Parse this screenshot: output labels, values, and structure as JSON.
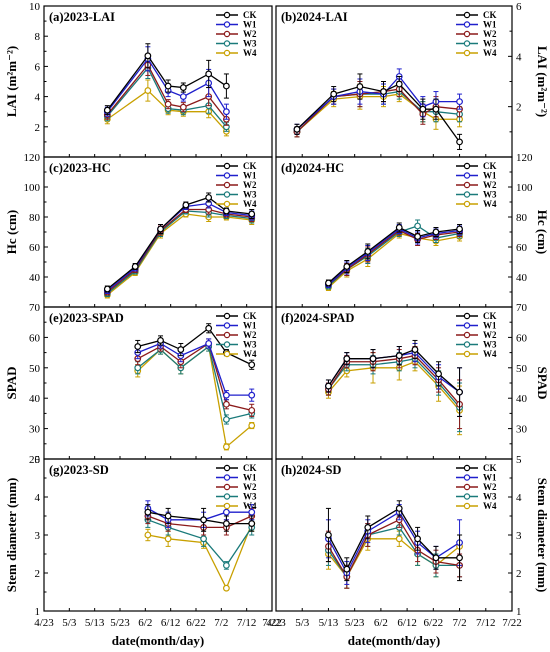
{
  "figure": {
    "xlabel": "date(month/day)",
    "x_ticks": [
      "4/23",
      "5/3",
      "5/13",
      "5/23",
      "6/2",
      "6/12",
      "6/22",
      "7/2",
      "7/12",
      "7/22"
    ],
    "series_styles": [
      {
        "name": "CK",
        "color": "#000000"
      },
      {
        "name": "W1",
        "color": "#1f1fcc"
      },
      {
        "name": "W2",
        "color": "#8b1a1a"
      },
      {
        "name": "W3",
        "color": "#1a7a7a"
      },
      {
        "name": "W4",
        "color": "#c8a000"
      }
    ]
  },
  "chart_data": [
    {
      "id": "a",
      "type": "line",
      "title": "(a)2023-LAI",
      "ylabel": "LAI (m²m⁻²)",
      "y_axis_side": "left",
      "ylim": [
        0,
        10
      ],
      "yticks": [
        2,
        4,
        6,
        8,
        10
      ],
      "x": [
        "5/18",
        "6/3",
        "6/11",
        "6/17",
        "6/27",
        "7/4"
      ],
      "series": [
        {
          "name": "CK",
          "values": [
            3.1,
            6.7,
            4.7,
            4.6,
            5.5,
            4.7
          ],
          "err": [
            0.3,
            0.8,
            0.4,
            0.3,
            0.9,
            0.8
          ]
        },
        {
          "name": "W1",
          "values": [
            3.0,
            6.5,
            4.4,
            4.0,
            4.9,
            3.0
          ],
          "err": [
            0.3,
            0.8,
            0.4,
            0.3,
            0.9,
            0.5
          ]
        },
        {
          "name": "W2",
          "values": [
            2.8,
            6.1,
            3.5,
            3.3,
            4.0,
            2.5
          ],
          "err": [
            0.3,
            0.7,
            0.3,
            0.3,
            0.6,
            0.4
          ]
        },
        {
          "name": "W3",
          "values": [
            2.7,
            5.9,
            3.2,
            3.1,
            3.4,
            2.0
          ],
          "err": [
            0.3,
            0.7,
            0.3,
            0.3,
            0.5,
            0.3
          ]
        },
        {
          "name": "W4",
          "values": [
            2.5,
            4.4,
            3.1,
            3.0,
            3.0,
            1.7
          ],
          "err": [
            0.3,
            0.7,
            0.3,
            0.3,
            0.4,
            0.3
          ]
        }
      ]
    },
    {
      "id": "b",
      "type": "line",
      "title": "(b)2024-LAI",
      "ylabel": "LAI (m²m⁻²)",
      "y_axis_side": "right",
      "ylim": [
        0,
        6
      ],
      "yticks": [
        2,
        4,
        6
      ],
      "x": [
        "5/1",
        "5/15",
        "5/25",
        "6/3",
        "6/9",
        "6/18",
        "6/23",
        "7/2"
      ],
      "series": [
        {
          "name": "CK",
          "values": [
            1.1,
            2.5,
            2.8,
            2.6,
            2.9,
            1.9,
            1.9,
            0.6
          ],
          "err": [
            0.2,
            0.3,
            0.5,
            0.4,
            0.3,
            0.4,
            0.4,
            0.3
          ]
        },
        {
          "name": "W1",
          "values": [
            1.1,
            2.4,
            2.6,
            2.5,
            3.2,
            2.0,
            2.2,
            2.2
          ],
          "err": [
            0.2,
            0.3,
            0.5,
            0.4,
            0.3,
            0.4,
            0.4,
            0.3
          ]
        },
        {
          "name": "W2",
          "values": [
            1.0,
            2.4,
            2.5,
            2.6,
            2.7,
            1.7,
            2.0,
            1.9
          ],
          "err": [
            0.2,
            0.3,
            0.5,
            0.4,
            0.3,
            0.4,
            0.4,
            0.3
          ]
        },
        {
          "name": "W3",
          "values": [
            1.0,
            2.4,
            2.5,
            2.5,
            2.6,
            1.8,
            1.8,
            1.7
          ],
          "err": [
            0.2,
            0.3,
            0.5,
            0.4,
            0.3,
            0.4,
            0.4,
            0.3
          ]
        },
        {
          "name": "W4",
          "values": [
            1.0,
            2.3,
            2.4,
            2.4,
            2.5,
            1.8,
            1.5,
            1.5
          ],
          "err": [
            0.2,
            0.3,
            0.5,
            0.4,
            0.3,
            0.4,
            0.4,
            0.3
          ]
        }
      ]
    },
    {
      "id": "c",
      "type": "line",
      "title": "(c)2023-HC",
      "ylabel": "Hc (cm)",
      "y_axis_side": "left",
      "ylim": [
        20,
        120
      ],
      "yticks": [
        40,
        60,
        80,
        100,
        120
      ],
      "x": [
        "5/18",
        "5/29",
        "6/8",
        "6/18",
        "6/27",
        "7/4",
        "7/14"
      ],
      "series": [
        {
          "name": "CK",
          "values": [
            32,
            47,
            72,
            88,
            93,
            84,
            82
          ],
          "err": [
            2,
            2,
            3,
            2,
            3,
            2,
            3
          ]
        },
        {
          "name": "W1",
          "values": [
            31,
            46,
            72,
            87,
            89,
            83,
            81
          ],
          "err": [
            2,
            2,
            3,
            2,
            3,
            2,
            3
          ]
        },
        {
          "name": "W2",
          "values": [
            30,
            45,
            71,
            85,
            85,
            82,
            80
          ],
          "err": [
            2,
            2,
            3,
            2,
            3,
            2,
            3
          ]
        },
        {
          "name": "W3",
          "values": [
            29,
            44,
            70,
            84,
            83,
            81,
            79
          ],
          "err": [
            2,
            2,
            3,
            2,
            3,
            2,
            3
          ]
        },
        {
          "name": "W4",
          "values": [
            28,
            43,
            69,
            82,
            80,
            80,
            78
          ],
          "err": [
            2,
            2,
            3,
            2,
            3,
            2,
            3
          ]
        }
      ]
    },
    {
      "id": "d",
      "type": "line",
      "title": "(d)2024-HC",
      "ylabel": "Hc (cm)",
      "y_axis_side": "right",
      "ylim": [
        20,
        120
      ],
      "yticks": [
        40,
        60,
        80,
        100,
        120
      ],
      "x": [
        "5/13",
        "5/20",
        "5/28",
        "6/9",
        "6/16",
        "6/23",
        "7/2"
      ],
      "series": [
        {
          "name": "CK",
          "values": [
            36,
            47,
            57,
            73,
            67,
            70,
            72
          ],
          "err": [
            2,
            4,
            5,
            3,
            4,
            3,
            3
          ]
        },
        {
          "name": "W1",
          "values": [
            35,
            46,
            56,
            72,
            66,
            69,
            71
          ],
          "err": [
            2,
            4,
            5,
            3,
            4,
            3,
            3
          ]
        },
        {
          "name": "W2",
          "values": [
            35,
            45,
            55,
            71,
            65,
            68,
            70
          ],
          "err": [
            2,
            4,
            5,
            3,
            4,
            3,
            3
          ]
        },
        {
          "name": "W3",
          "values": [
            34,
            45,
            54,
            70,
            74,
            66,
            69
          ],
          "err": [
            2,
            4,
            5,
            3,
            4,
            3,
            3
          ]
        },
        {
          "name": "W4",
          "values": [
            33,
            44,
            52,
            69,
            66,
            64,
            67
          ],
          "err": [
            2,
            4,
            5,
            3,
            4,
            3,
            3
          ]
        }
      ]
    },
    {
      "id": "e",
      "type": "line",
      "title": "(e)2023-SPAD",
      "ylabel": "SPAD",
      "y_axis_side": "left",
      "ylim": [
        20,
        70
      ],
      "yticks": [
        20,
        30,
        40,
        50,
        60,
        70
      ],
      "x": [
        "5/30",
        "6/8",
        "6/16",
        "6/27",
        "7/4",
        "7/14"
      ],
      "series": [
        {
          "name": "CK",
          "values": [
            57,
            59,
            56,
            63,
            55,
            51
          ],
          "err": [
            2,
            1.5,
            2,
            1.5,
            1,
            1.5
          ]
        },
        {
          "name": "W1",
          "values": [
            55,
            58,
            54,
            58,
            41,
            41
          ],
          "err": [
            2,
            1.5,
            2,
            1.5,
            1.5,
            2
          ]
        },
        {
          "name": "W2",
          "values": [
            53,
            57,
            52,
            58,
            38,
            36
          ],
          "err": [
            2,
            1.5,
            2,
            1.5,
            1.5,
            2
          ]
        },
        {
          "name": "W3",
          "values": [
            50,
            56,
            50,
            57,
            33,
            35
          ],
          "err": [
            2,
            1.5,
            2,
            1.5,
            1.5,
            1.5
          ]
        },
        {
          "name": "W4",
          "values": [
            49,
            56,
            50,
            57,
            24,
            31
          ],
          "err": [
            2,
            1.5,
            2,
            1.5,
            1,
            1
          ]
        }
      ]
    },
    {
      "id": "f",
      "type": "line",
      "title": "(f)2024-SPAD",
      "ylabel": "SPAD",
      "y_axis_side": "right",
      "ylim": [
        20,
        70
      ],
      "yticks": [
        30,
        40,
        50,
        60,
        70
      ],
      "x": [
        "5/13",
        "5/20",
        "5/30",
        "6/9",
        "6/15",
        "6/24",
        "7/2"
      ],
      "series": [
        {
          "name": "CK",
          "values": [
            44,
            53,
            53,
            54,
            56,
            48,
            42
          ],
          "err": [
            2,
            2,
            3,
            3,
            3,
            4,
            8
          ]
        },
        {
          "name": "W1",
          "values": [
            44,
            53,
            53,
            54,
            55,
            47,
            42
          ],
          "err": [
            2,
            2,
            3,
            3,
            3,
            4,
            8
          ]
        },
        {
          "name": "W2",
          "values": [
            43,
            52,
            52,
            53,
            54,
            46,
            38
          ],
          "err": [
            2,
            2,
            3,
            3,
            3,
            4,
            8
          ]
        },
        {
          "name": "W3",
          "values": [
            43,
            51,
            51,
            52,
            53,
            45,
            37
          ],
          "err": [
            2,
            2,
            3,
            3,
            3,
            4,
            8
          ]
        },
        {
          "name": "W4",
          "values": [
            42,
            49,
            50,
            50,
            52,
            44,
            36
          ],
          "err": [
            2,
            2,
            5,
            4,
            3,
            5,
            8
          ]
        }
      ]
    },
    {
      "id": "g",
      "type": "line",
      "title": "(g)2023-SD",
      "ylabel": "Stem diameter (mm)",
      "y_axis_side": "left",
      "ylim": [
        1,
        5
      ],
      "yticks": [
        1,
        2,
        3,
        4,
        5
      ],
      "x": [
        "6/3",
        "6/11",
        "6/25",
        "7/4",
        "7/14"
      ],
      "series": [
        {
          "name": "CK",
          "values": [
            3.6,
            3.5,
            3.4,
            3.3,
            3.3
          ],
          "err": [
            0.2,
            0.2,
            0.3,
            0.2,
            0.2
          ]
        },
        {
          "name": "W1",
          "values": [
            3.7,
            3.4,
            3.4,
            3.6,
            3.6
          ],
          "err": [
            0.2,
            0.2,
            0.2,
            0.2,
            0.2
          ]
        },
        {
          "name": "W2",
          "values": [
            3.5,
            3.3,
            3.2,
            3.2,
            3.5
          ],
          "err": [
            0.2,
            0.2,
            0.2,
            0.2,
            0.2
          ]
        },
        {
          "name": "W3",
          "values": [
            3.4,
            3.2,
            2.9,
            2.2,
            3.2
          ],
          "err": [
            0.2,
            0.2,
            0.2,
            0.1,
            0.2
          ]
        },
        {
          "name": "W4",
          "values": [
            3.0,
            2.9,
            2.8,
            1.6,
            3.3
          ],
          "err": [
            0.15,
            0.2,
            0.15,
            0.05,
            0.2
          ]
        }
      ]
    },
    {
      "id": "h",
      "type": "line",
      "title": "(h)2024-SD",
      "ylabel": "Stem diameter (mm)",
      "y_axis_side": "right",
      "ylim": [
        1,
        5
      ],
      "yticks": [
        1,
        2,
        3,
        4,
        5
      ],
      "x": [
        "5/13",
        "5/20",
        "5/28",
        "6/9",
        "6/16",
        "6/23",
        "7/2"
      ],
      "series": [
        {
          "name": "CK",
          "values": [
            3.0,
            2.1,
            3.2,
            3.7,
            2.9,
            2.4,
            2.4
          ],
          "err": [
            0.7,
            0.3,
            0.3,
            0.2,
            0.3,
            0.3,
            0.6
          ]
        },
        {
          "name": "W1",
          "values": [
            2.9,
            2.0,
            3.1,
            3.6,
            2.8,
            2.4,
            2.8
          ],
          "err": [
            0.5,
            0.3,
            0.3,
            0.2,
            0.3,
            0.3,
            0.6
          ]
        },
        {
          "name": "W2",
          "values": [
            2.7,
            1.9,
            3.0,
            3.4,
            2.6,
            2.3,
            2.2
          ],
          "err": [
            0.4,
            0.3,
            0.3,
            0.2,
            0.3,
            0.3,
            0.3
          ]
        },
        {
          "name": "W3",
          "values": [
            2.6,
            1.9,
            3.0,
            3.2,
            2.5,
            2.2,
            2.2
          ],
          "err": [
            0.4,
            0.3,
            0.3,
            0.2,
            0.3,
            0.3,
            0.3
          ]
        },
        {
          "name": "W4",
          "values": [
            2.5,
            1.9,
            2.9,
            2.9,
            2.5,
            2.2,
            2.7
          ],
          "err": [
            0.4,
            0.3,
            0.3,
            0.2,
            0.3,
            0.3,
            0.3
          ]
        }
      ]
    }
  ]
}
